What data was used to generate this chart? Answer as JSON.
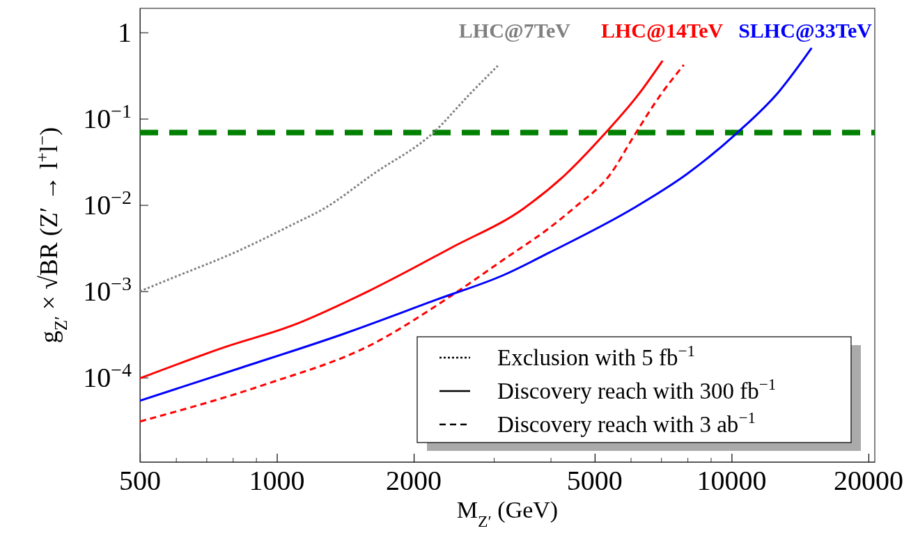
{
  "chart_data": {
    "type": "line",
    "xlabel": "M$_{Z′}$ (GeV)",
    "ylabel": "g$_{Z′}$ × √BR (Z′ → l$^{+}$l$^{−}$)",
    "log": "xy",
    "xlim": [
      500,
      20650
    ],
    "ylim": [
      1.05e-05,
      1.9
    ],
    "xticks": [
      500,
      {
        "value": 600,
        "label": null
      },
      {
        "value": 700,
        "label": null
      },
      {
        "value": 800,
        "label": null
      },
      {
        "value": 900,
        "label": null
      },
      1000,
      2000,
      {
        "value": 3000,
        "label": null
      },
      {
        "value": 4000,
        "label": null
      },
      5000,
      {
        "value": 6000,
        "label": null
      },
      {
        "value": 7000,
        "label": null
      },
      {
        "value": 8000,
        "label": null
      },
      {
        "value": 9000,
        "label": null
      },
      10000,
      20000
    ],
    "yticks": [
      {
        "value": 0.0001,
        "label": "10$^{−4}$"
      },
      {
        "value": 0.001,
        "label": "10$^{−3}$"
      },
      {
        "value": 0.01,
        "label": "10$^{−2}$"
      },
      {
        "value": 0.1,
        "label": "10$^{−1}$"
      },
      1
    ],
    "grid": false,
    "legend": "top right",
    "series": [
      {
        "name": "LHC@7TeV",
        "color": "#808080",
        "line_style": "dotted",
        "x": [
          500,
          588,
          823,
          1080,
          1270,
          1632,
          2210,
          2657,
          3060
        ],
        "values": [
          0.001,
          0.00142,
          0.00294,
          0.0059,
          0.0091,
          0.023,
          0.069,
          0.193,
          0.41
        ]
      },
      {
        "name": "LHC@14TeV",
        "color": "#ff0000",
        "line_style": "solid",
        "x": [
          500,
          770,
          1080,
          1612,
          2420,
          3488,
          4330,
          5220,
          6250,
          7050
        ],
        "values": [
          9.8e-05,
          0.000226,
          0.0004,
          0.00104,
          0.0032,
          0.0091,
          0.023,
          0.064,
          0.193,
          0.47
        ]
      },
      {
        "color": "#ff0000",
        "line_style": "dashed",
        "x": [
          500,
          941,
          1612,
          2420,
          3160,
          3970,
          4510,
          5420,
          6110,
          7000,
          7850
        ],
        "values": [
          3.1e-05,
          8.3e-05,
          0.00024,
          0.00089,
          0.00235,
          0.0054,
          0.0093,
          0.023,
          0.064,
          0.193,
          0.42
        ]
      },
      {
        "name": "SLHC@33TeV",
        "color": "#0000ff",
        "line_style": "solid",
        "x": [
          500,
          823,
          1400,
          2260,
          3160,
          3970,
          6110,
          7990,
          10300,
          12710,
          15000
        ],
        "values": [
          5.4e-05,
          0.000127,
          0.00032,
          0.00081,
          0.00155,
          0.0028,
          0.0093,
          0.023,
          0.069,
          0.206,
          0.66
        ]
      }
    ],
    "ref_lines": [
      {
        "axis": "y",
        "value": 0.069,
        "color": "#008000",
        "line_style": "dashed"
      }
    ],
    "annotations": [
      "Exclusion with 5 fb$^{−1}$",
      "Discovery reach with 300 fb$^{−1}$",
      "Discovery reach with 3 ab$^{−1}$"
    ]
  }
}
